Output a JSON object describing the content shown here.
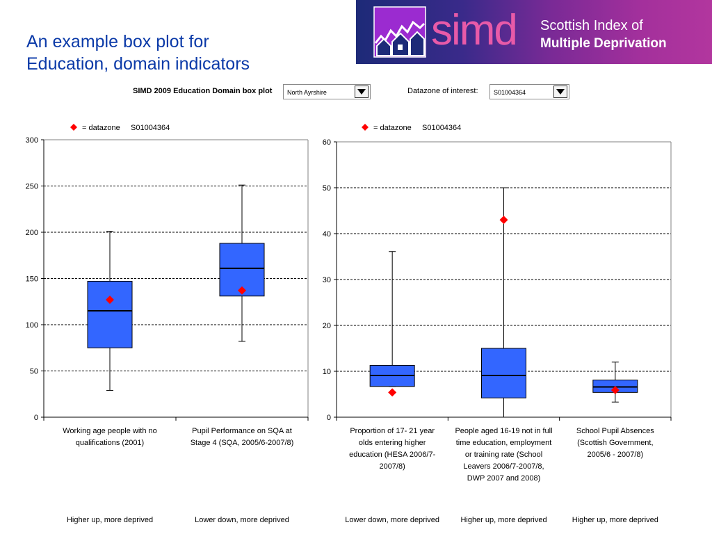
{
  "slide_title": [
    "An example box plot for",
    "Education, domain indicators"
  ],
  "banner": {
    "brand": "simd",
    "line1": "Scottish Index of",
    "line2": "Multiple Deprivation",
    "logo_icon": "houses-skyline-icon"
  },
  "controls": {
    "chart_title": "SIMD 2009 Education Domain box plot",
    "area_select": "North Ayrshire",
    "datazone_label": "Datazone of interest:",
    "datazone_select": "S01004364"
  },
  "legend": {
    "marker_label": "= datazone",
    "datazone": "S01004364"
  },
  "colors": {
    "box": "#3366ff",
    "marker": "#ff0000",
    "title": "#0b3aa8"
  },
  "chart_data": [
    {
      "type": "boxplot",
      "ylim": [
        0,
        300
      ],
      "yticks": [
        0,
        50,
        100,
        150,
        200,
        250,
        300
      ],
      "grid": "horizontal-dashed",
      "legend_position": "top-left",
      "categories": [
        {
          "label": [
            "Working age people with no",
            "qualifications (2001)"
          ],
          "note": "Higher up, more deprived",
          "min": 29,
          "q1": 75,
          "median": 115,
          "q3": 147,
          "max": 201,
          "datazone": 127
        },
        {
          "label": [
            "Pupil Performance on SQA at",
            "Stage 4 (SQA, 2005/6-2007/8)"
          ],
          "note": "Lower down, more deprived",
          "min": 82,
          "q1": 131,
          "median": 161,
          "q3": 188,
          "max": 251,
          "datazone": 137
        }
      ]
    },
    {
      "type": "boxplot",
      "ylim": [
        0,
        60
      ],
      "yticks": [
        0,
        10,
        20,
        30,
        40,
        50,
        60
      ],
      "grid": "horizontal-dashed",
      "legend_position": "top-left",
      "categories": [
        {
          "label": [
            "Proportion of 17- 21 year",
            "olds entering higher",
            "education (HESA 2006/7-",
            "2007/8)"
          ],
          "note": "Lower down, more deprived",
          "min": 6.7,
          "q1": 6.7,
          "median": 9.1,
          "q3": 11.3,
          "max": 36.1,
          "datazone": 5.4
        },
        {
          "label": [
            "People aged 16-19 not in full",
            "time education, employment",
            "or training rate (School",
            "Leavers 2006/7-2007/8,",
            "DWP 2007 and 2008)"
          ],
          "note": "Higher up, more deprived",
          "min": 0,
          "q1": 4.2,
          "median": 9.1,
          "q3": 15.0,
          "max": 50.0,
          "datazone": 43.0
        },
        {
          "label": [
            "School Pupil Absences",
            "(Scottish Government,",
            "2005/6 - 2007/8)"
          ],
          "note": "Higher up, more deprived",
          "min": 3.3,
          "q1": 5.4,
          "median": 6.6,
          "q3": 8.1,
          "max": 12.0,
          "datazone": 5.9
        }
      ]
    }
  ]
}
